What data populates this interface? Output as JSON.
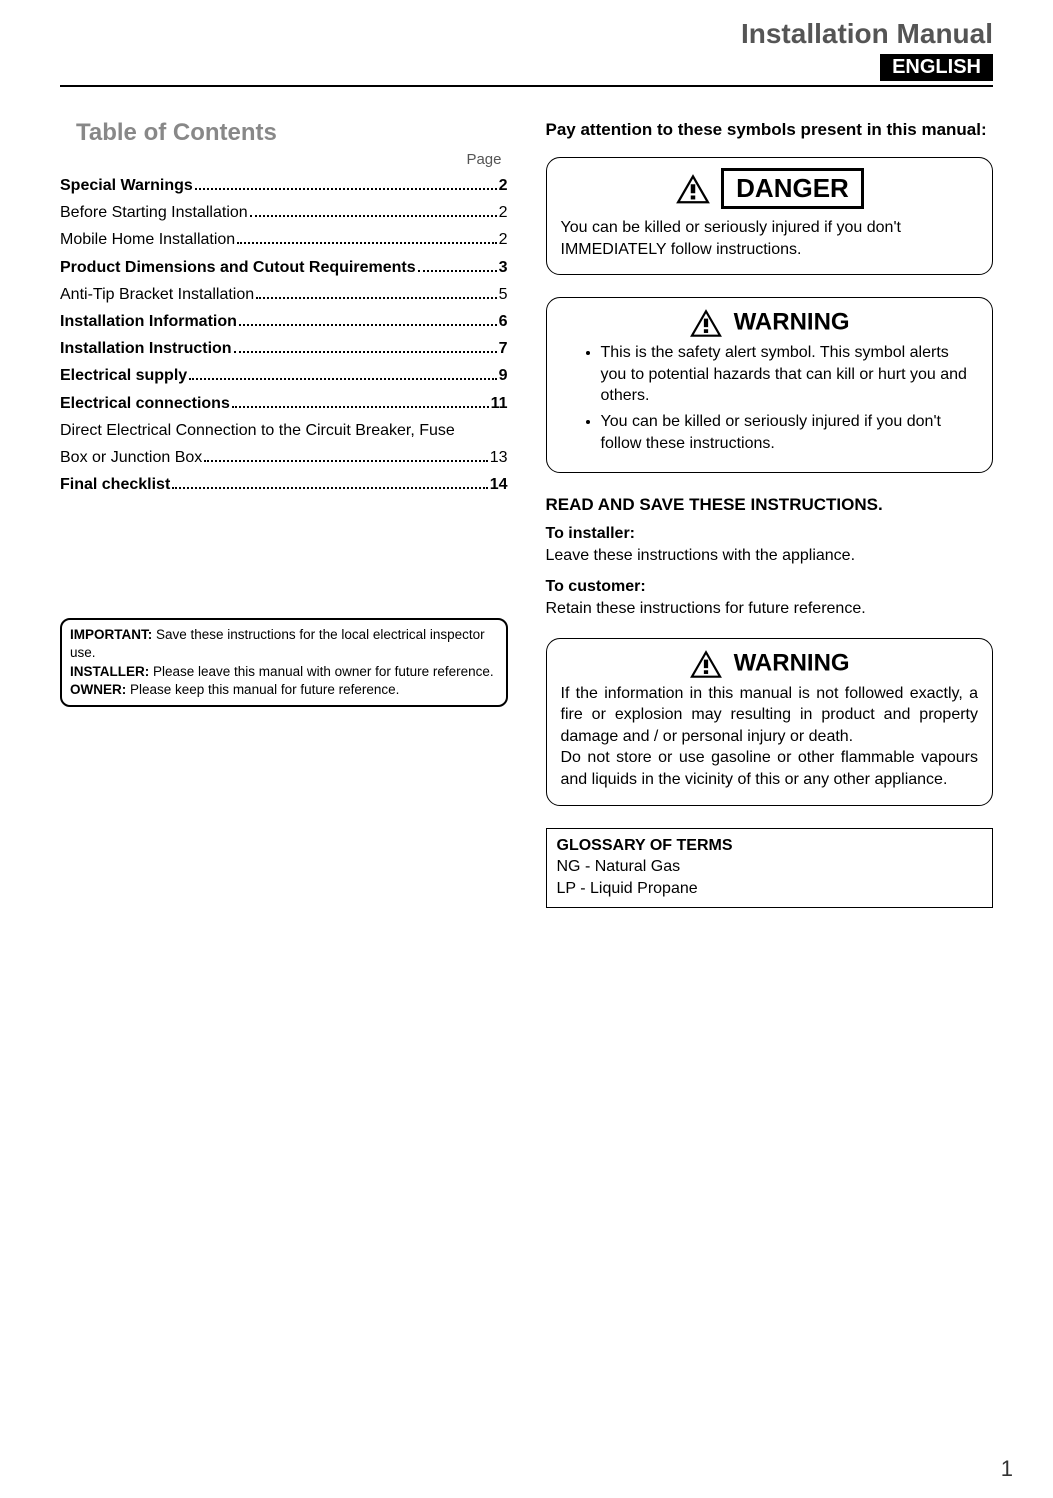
{
  "header": {
    "title": "Installation Manual",
    "language": "ENGLISH"
  },
  "toc": {
    "title": "Table of Contents",
    "page_label": "Page",
    "items": [
      {
        "label": "Special Warnings",
        "page": "2",
        "bold": true
      },
      {
        "label": "Before Starting Installation",
        "page": "2",
        "bold": false
      },
      {
        "label": "Mobile Home Installation",
        "page": "2",
        "bold": false
      },
      {
        "label": "Product Dimensions and Cutout Requirements",
        "page": "3",
        "bold": true
      },
      {
        "label": "Anti-Tip Bracket Installation",
        "page": "5",
        "bold": false
      },
      {
        "label": "Installation Information",
        "page": "6",
        "bold": true
      },
      {
        "label": "Installation Instruction",
        "page": "7",
        "bold": true
      },
      {
        "label": "Electrical supply",
        "page": "9",
        "bold": true
      },
      {
        "label": "Electrical connections",
        "page": "11",
        "bold": true
      },
      {
        "label": "Direct Electrical Connection to the Circuit Breaker, Fuse Box or Junction Box",
        "page": "13",
        "bold": false,
        "wrap": true,
        "line1": "Direct Electrical Connection to the Circuit Breaker, Fuse",
        "line2": "Box or Junction Box"
      },
      {
        "label": "Final checklist",
        "page": "14",
        "bold": true
      }
    ]
  },
  "important": {
    "lines": [
      {
        "label": "IMPORTANT:",
        "text": " Save these instructions for the local electrical inspector use."
      },
      {
        "label": "INSTALLER:",
        "text": " Please leave this manual with owner for future reference."
      },
      {
        "label": "OWNER:",
        "text": " Please keep this manual for future reference."
      }
    ]
  },
  "right": {
    "intro": "Pay attention to these symbols present in this manual:",
    "danger": {
      "label": "DANGER",
      "text": "You can be killed or seriously injured if you don't IMMEDIATELY follow instructions."
    },
    "warning1": {
      "label": "WARNING",
      "bullets": [
        "This is the safety alert symbol. This symbol alerts you to potential hazards that can kill or hurt you and others.",
        "You can be killed or seriously injured if you don't follow these instructions."
      ]
    },
    "read_save": "READ AND SAVE THESE INSTRUCTIONS.",
    "installer": {
      "label": "To installer:",
      "text": "Leave these instructions with the appliance."
    },
    "customer": {
      "label": "To customer:",
      "text": "Retain these instructions for future reference."
    },
    "warning2": {
      "label": "WARNING",
      "text": "If the information in this manual is not followed exactly, a fire or explosion may resulting in product and property damage and / or  personal injury or death.\nDo not store or use gasoline or other flammable vapours and liquids in the vicinity of this or any other appliance."
    },
    "glossary": {
      "title": "GLOSSARY OF TERMS",
      "lines": [
        "NG - Natural Gas",
        "LP - Liquid Propane"
      ]
    }
  },
  "page_number": "1",
  "colors": {
    "header_title": "#555555",
    "toc_title": "#888888",
    "text": "#000000",
    "lang_bg": "#000000",
    "lang_fg": "#ffffff"
  }
}
